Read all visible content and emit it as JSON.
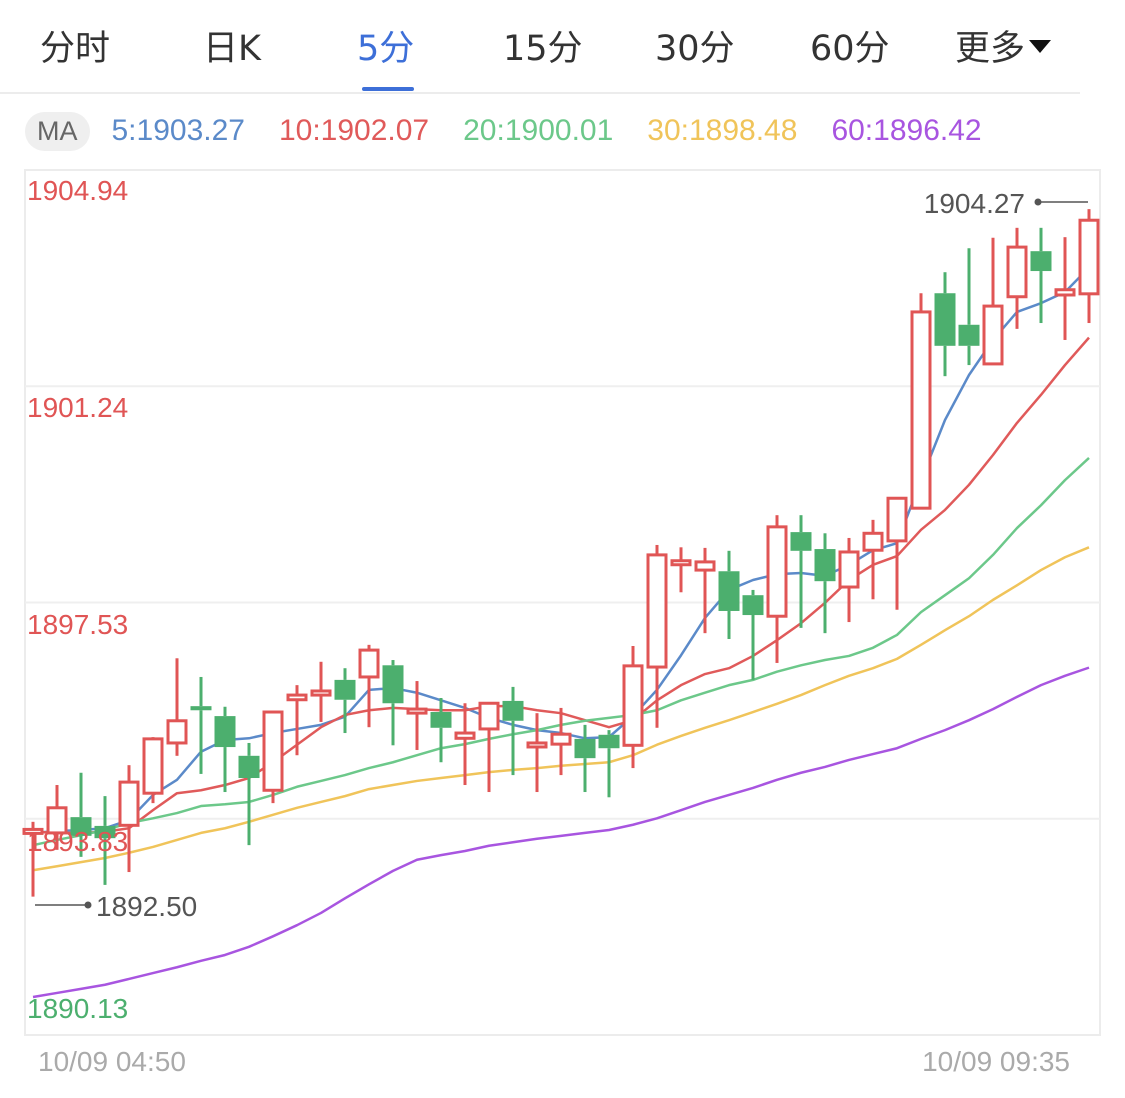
{
  "tabs": [
    {
      "label": "分时",
      "active": false
    },
    {
      "label": "日K",
      "active": false
    },
    {
      "label": "5分",
      "active": true
    },
    {
      "label": "15分",
      "active": false
    },
    {
      "label": "30分",
      "active": false
    },
    {
      "label": "60分",
      "active": false
    },
    {
      "label": "更多",
      "active": false,
      "icon": "caret-down-icon"
    }
  ],
  "ma_legend": {
    "badge": "MA",
    "items": [
      {
        "label": "5:1903.27",
        "color": "#5b8ac9"
      },
      {
        "label": "10:1902.07",
        "color": "#e05a5a"
      },
      {
        "label": "20:1900.01",
        "color": "#6cc88a"
      },
      {
        "label": "30:1898.48",
        "color": "#f0c45a"
      },
      {
        "label": "60:1896.42",
        "color": "#a855e0"
      }
    ]
  },
  "colors": {
    "up": "#e05555",
    "down": "#4caf6e",
    "accent": "#3d6fd8"
  },
  "chart_data": {
    "type": "candlestick",
    "ylim": [
      1890.13,
      1904.94
    ],
    "y_ticks": [
      "1904.94",
      "1901.24",
      "1897.53",
      "1893.83",
      "1890.13"
    ],
    "x_labels": [
      "10/09 04:50",
      "10/09 09:35"
    ],
    "grid": true,
    "max_marker": "1904.27",
    "min_marker": "1892.50",
    "candles": [
      [
        1893.62,
        1893.65,
        1893.78,
        1892.5
      ],
      [
        1893.59,
        1894.02,
        1894.41,
        1893.3
      ],
      [
        1893.86,
        1893.54,
        1894.62,
        1893.18
      ],
      [
        1893.71,
        1893.5,
        1894.22,
        1892.7
      ],
      [
        1893.72,
        1894.46,
        1894.75,
        1892.92
      ],
      [
        1894.27,
        1895.2,
        1895.23,
        1894.1
      ],
      [
        1895.13,
        1895.51,
        1896.58,
        1894.91
      ],
      [
        1895.76,
        1895.69,
        1896.26,
        1894.6
      ],
      [
        1895.59,
        1895.06,
        1895.75,
        1894.29
      ],
      [
        1894.91,
        1894.53,
        1895.13,
        1893.38
      ],
      [
        1894.32,
        1895.66,
        1895.66,
        1894.1
      ],
      [
        1895.87,
        1895.95,
        1896.12,
        1894.92
      ],
      [
        1895.95,
        1896.02,
        1896.52,
        1895.49
      ],
      [
        1896.21,
        1895.87,
        1896.41,
        1895.3
      ],
      [
        1896.26,
        1896.72,
        1896.81,
        1895.4
      ],
      [
        1896.46,
        1895.81,
        1896.55,
        1895.09
      ],
      [
        1895.69,
        1895.71,
        1896.19,
        1895.01
      ],
      [
        1895.66,
        1895.39,
        1895.9,
        1894.8
      ],
      [
        1895.21,
        1895.3,
        1895.81,
        1894.41
      ],
      [
        1895.37,
        1895.81,
        1895.81,
        1894.29
      ],
      [
        1895.85,
        1895.51,
        1896.09,
        1894.58
      ],
      [
        1895.11,
        1895.13,
        1895.64,
        1894.29
      ],
      [
        1895.11,
        1895.28,
        1895.73,
        1894.58
      ],
      [
        1895.2,
        1894.87,
        1895.44,
        1894.29
      ],
      [
        1895.27,
        1895.04,
        1895.35,
        1894.2
      ],
      [
        1895.09,
        1896.45,
        1896.79,
        1894.7
      ],
      [
        1896.43,
        1898.35,
        1898.52,
        1895.39
      ],
      [
        1898.19,
        1898.25,
        1898.48,
        1897.71
      ],
      [
        1898.09,
        1898.23,
        1898.47,
        1897.01
      ],
      [
        1898.07,
        1897.39,
        1898.42,
        1896.91
      ],
      [
        1897.66,
        1897.32,
        1897.75,
        1896.21
      ],
      [
        1897.3,
        1898.83,
        1899.03,
        1896.5
      ],
      [
        1898.74,
        1898.42,
        1899.03,
        1897.1
      ],
      [
        1898.45,
        1897.9,
        1898.72,
        1897.01
      ],
      [
        1897.8,
        1898.4,
        1898.64,
        1897.2
      ],
      [
        1898.43,
        1898.72,
        1898.95,
        1897.59
      ],
      [
        1898.59,
        1899.32,
        1899.32,
        1897.41
      ],
      [
        1899.15,
        1902.51,
        1902.83,
        1899.15
      ],
      [
        1902.83,
        1901.93,
        1903.19,
        1901.41
      ],
      [
        1902.29,
        1901.93,
        1903.6,
        1901.6
      ],
      [
        1901.62,
        1902.61,
        1903.78,
        1901.62
      ],
      [
        1902.77,
        1903.62,
        1903.95,
        1902.22
      ],
      [
        1903.55,
        1903.21,
        1903.95,
        1902.32
      ],
      [
        1902.8,
        1902.89,
        1903.79,
        1902.03
      ],
      [
        1902.82,
        1904.08,
        1904.27,
        1902.32
      ]
    ],
    "ma": [
      {
        "period": 5,
        "color": "#5b8ac9",
        "values": [
          1893.59,
          1893.62,
          1893.64,
          1893.67,
          1893.81,
          1894.24,
          1894.5,
          1894.98,
          1895.18,
          1895.21,
          1895.3,
          1895.37,
          1895.44,
          1895.58,
          1896.04,
          1896.07,
          1895.99,
          1895.86,
          1895.73,
          1895.56,
          1895.44,
          1895.35,
          1895.3,
          1895.21,
          1895.23,
          1895.59,
          1896.04,
          1896.63,
          1897.27,
          1897.75,
          1897.92,
          1898.02,
          1898.04,
          1897.99,
          1898.18,
          1898.43,
          1898.55,
          1899.63,
          1900.66,
          1901.43,
          1902.03,
          1902.51,
          1902.66,
          1902.85,
          1903.27
        ]
      },
      {
        "period": 10,
        "color": "#e05a5a",
        "values": [
          1893.61,
          1893.59,
          1893.59,
          1893.61,
          1893.67,
          1893.98,
          1894.27,
          1894.32,
          1894.41,
          1894.53,
          1894.8,
          1895.1,
          1895.4,
          1895.61,
          1895.69,
          1895.73,
          1895.71,
          1895.69,
          1895.69,
          1895.76,
          1895.76,
          1895.69,
          1895.64,
          1895.52,
          1895.4,
          1895.52,
          1895.86,
          1896.12,
          1896.31,
          1896.41,
          1896.62,
          1896.89,
          1897.18,
          1897.53,
          1897.92,
          1898.18,
          1898.33,
          1898.78,
          1899.12,
          1899.55,
          1900.06,
          1900.61,
          1901.09,
          1901.6,
          1902.07
        ]
      },
      {
        "period": 20,
        "color": "#6cc88a",
        "values": [
          1893.38,
          1893.47,
          1893.55,
          1893.64,
          1893.76,
          1893.84,
          1893.93,
          1894.05,
          1894.08,
          1894.12,
          1894.24,
          1894.38,
          1894.48,
          1894.58,
          1894.7,
          1894.8,
          1894.92,
          1895.04,
          1895.11,
          1895.2,
          1895.28,
          1895.35,
          1895.44,
          1895.51,
          1895.56,
          1895.61,
          1895.69,
          1895.86,
          1895.99,
          1896.12,
          1896.21,
          1896.35,
          1896.46,
          1896.55,
          1896.62,
          1896.76,
          1896.98,
          1897.37,
          1897.66,
          1897.95,
          1898.35,
          1898.81,
          1899.2,
          1899.63,
          1900.01
        ]
      },
      {
        "period": 30,
        "color": "#f0c45a",
        "values": [
          1892.95,
          1893.02,
          1893.09,
          1893.16,
          1893.25,
          1893.35,
          1893.47,
          1893.59,
          1893.67,
          1893.78,
          1893.9,
          1894.02,
          1894.12,
          1894.22,
          1894.34,
          1894.41,
          1894.48,
          1894.53,
          1894.58,
          1894.63,
          1894.67,
          1894.7,
          1894.74,
          1894.77,
          1894.8,
          1894.92,
          1895.1,
          1895.25,
          1895.39,
          1895.52,
          1895.66,
          1895.8,
          1895.95,
          1896.12,
          1896.28,
          1896.41,
          1896.57,
          1896.81,
          1897.06,
          1897.3,
          1897.58,
          1897.83,
          1898.09,
          1898.31,
          1898.48
        ]
      },
      {
        "period": 60,
        "color": "#a855e0",
        "values": [
          1890.78,
          1890.85,
          1890.92,
          1890.99,
          1891.09,
          1891.19,
          1891.29,
          1891.4,
          1891.5,
          1891.64,
          1891.82,
          1892.01,
          1892.22,
          1892.47,
          1892.71,
          1892.94,
          1893.13,
          1893.21,
          1893.28,
          1893.37,
          1893.43,
          1893.49,
          1893.54,
          1893.59,
          1893.64,
          1893.73,
          1893.84,
          1893.98,
          1894.12,
          1894.24,
          1894.36,
          1894.5,
          1894.62,
          1894.72,
          1894.84,
          1894.94,
          1895.04,
          1895.2,
          1895.35,
          1895.52,
          1895.71,
          1895.92,
          1896.12,
          1896.28,
          1896.42
        ]
      }
    ]
  }
}
